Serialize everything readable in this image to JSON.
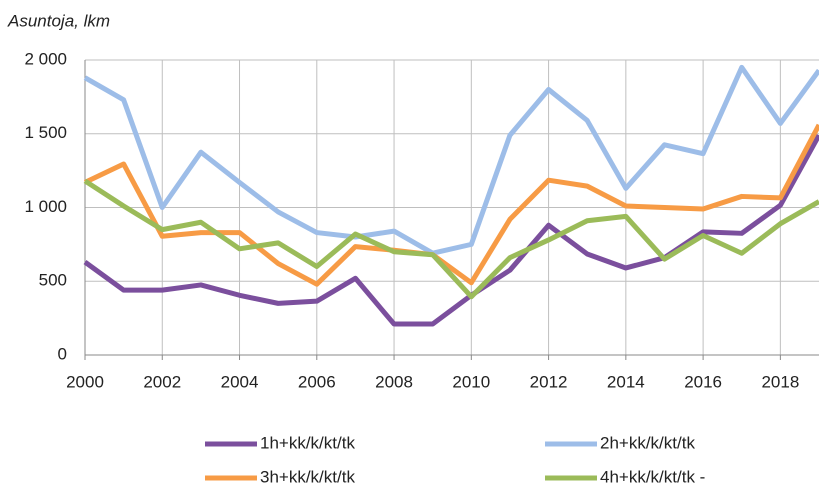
{
  "chart_data": {
    "type": "line",
    "title": "Asuntoja, lkm",
    "x": [
      2000,
      2001,
      2002,
      2003,
      2004,
      2005,
      2006,
      2007,
      2008,
      2009,
      2010,
      2011,
      2012,
      2013,
      2014,
      2015,
      2016,
      2017,
      2018,
      2019
    ],
    "xlim": [
      2000,
      2019
    ],
    "xticks": [
      2000,
      2002,
      2004,
      2006,
      2008,
      2010,
      2012,
      2014,
      2016,
      2018
    ],
    "ylim": [
      0,
      2000
    ],
    "yticks": [
      0,
      500,
      {
        "value": 1000,
        "label": "1 000"
      },
      {
        "value": 1500,
        "label": "1 500"
      },
      {
        "value": 2000,
        "label": "2 000"
      }
    ],
    "grid": true,
    "legend": "bottom",
    "series": [
      {
        "name": "1h+kk/k/kt/tk",
        "color": "#7b4f9d",
        "values": [
          630,
          440,
          440,
          475,
          405,
          350,
          365,
          520,
          210,
          210,
          405,
          575,
          880,
          685,
          590,
          660,
          835,
          825,
          1015,
          1490
        ]
      },
      {
        "name": "2h+kk/k/kt/tk",
        "color": "#9dbde8",
        "values": [
          1880,
          1730,
          1000,
          1375,
          1170,
          970,
          830,
          800,
          840,
          690,
          750,
          1490,
          1800,
          1590,
          1130,
          1425,
          1365,
          1950,
          1570,
          1930
        ]
      },
      {
        "name": "3h+kk/k/kt/tk",
        "color": "#f79b45",
        "values": [
          1170,
          1295,
          805,
          830,
          830,
          620,
          480,
          735,
          710,
          680,
          490,
          920,
          1185,
          1145,
          1010,
          1000,
          990,
          1075,
          1065,
          1560
        ]
      },
      {
        "name": "4h+kk/k/kt/tk -",
        "color": "#9bbb59",
        "values": [
          1180,
          1010,
          850,
          900,
          720,
          760,
          600,
          820,
          700,
          680,
          395,
          660,
          780,
          910,
          940,
          650,
          810,
          690,
          890,
          1040
        ]
      }
    ]
  }
}
